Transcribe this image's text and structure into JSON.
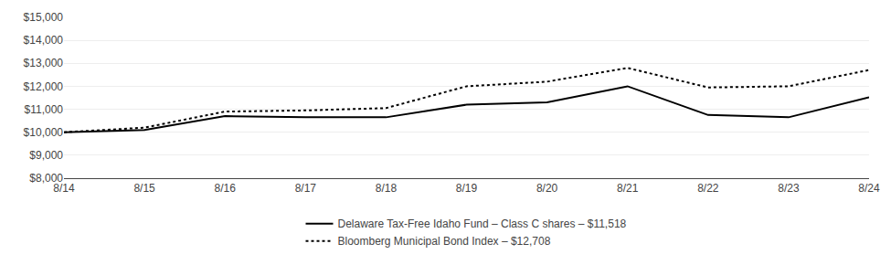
{
  "chart_data": {
    "type": "line",
    "categories": [
      "8/14",
      "8/15",
      "8/16",
      "8/17",
      "8/18",
      "8/19",
      "8/20",
      "8/21",
      "8/22",
      "8/23",
      "8/24"
    ],
    "series": [
      {
        "name": "Delaware Tax-Free Idaho Fund – Class C shares – $11,518",
        "color": "#000000",
        "line_style": "solid",
        "values": [
          10000,
          10100,
          10700,
          10650,
          10650,
          11200,
          11300,
          12000,
          10750,
          10650,
          11518
        ]
      },
      {
        "name": "Bloomberg Municipal Bond Index – $12,708",
        "color": "#000000",
        "line_style": "dotted",
        "values": [
          10000,
          10200,
          10900,
          10950,
          11050,
          12000,
          12200,
          12800,
          11950,
          12000,
          12708
        ]
      }
    ],
    "ylim": [
      8000,
      15000
    ],
    "yticks": [
      {
        "value": 8000,
        "label": "$8,000"
      },
      {
        "value": 9000,
        "label": "$9,000"
      },
      {
        "value": 10000,
        "label": "$10,000"
      },
      {
        "value": 11000,
        "label": "$11,000"
      },
      {
        "value": 12000,
        "label": "$12,000"
      },
      {
        "value": 13000,
        "label": "$13,000"
      },
      {
        "value": 14000,
        "label": "$14,000"
      },
      {
        "value": 15000,
        "label": "$15,000"
      }
    ],
    "grid": true,
    "legend": "bottom"
  }
}
